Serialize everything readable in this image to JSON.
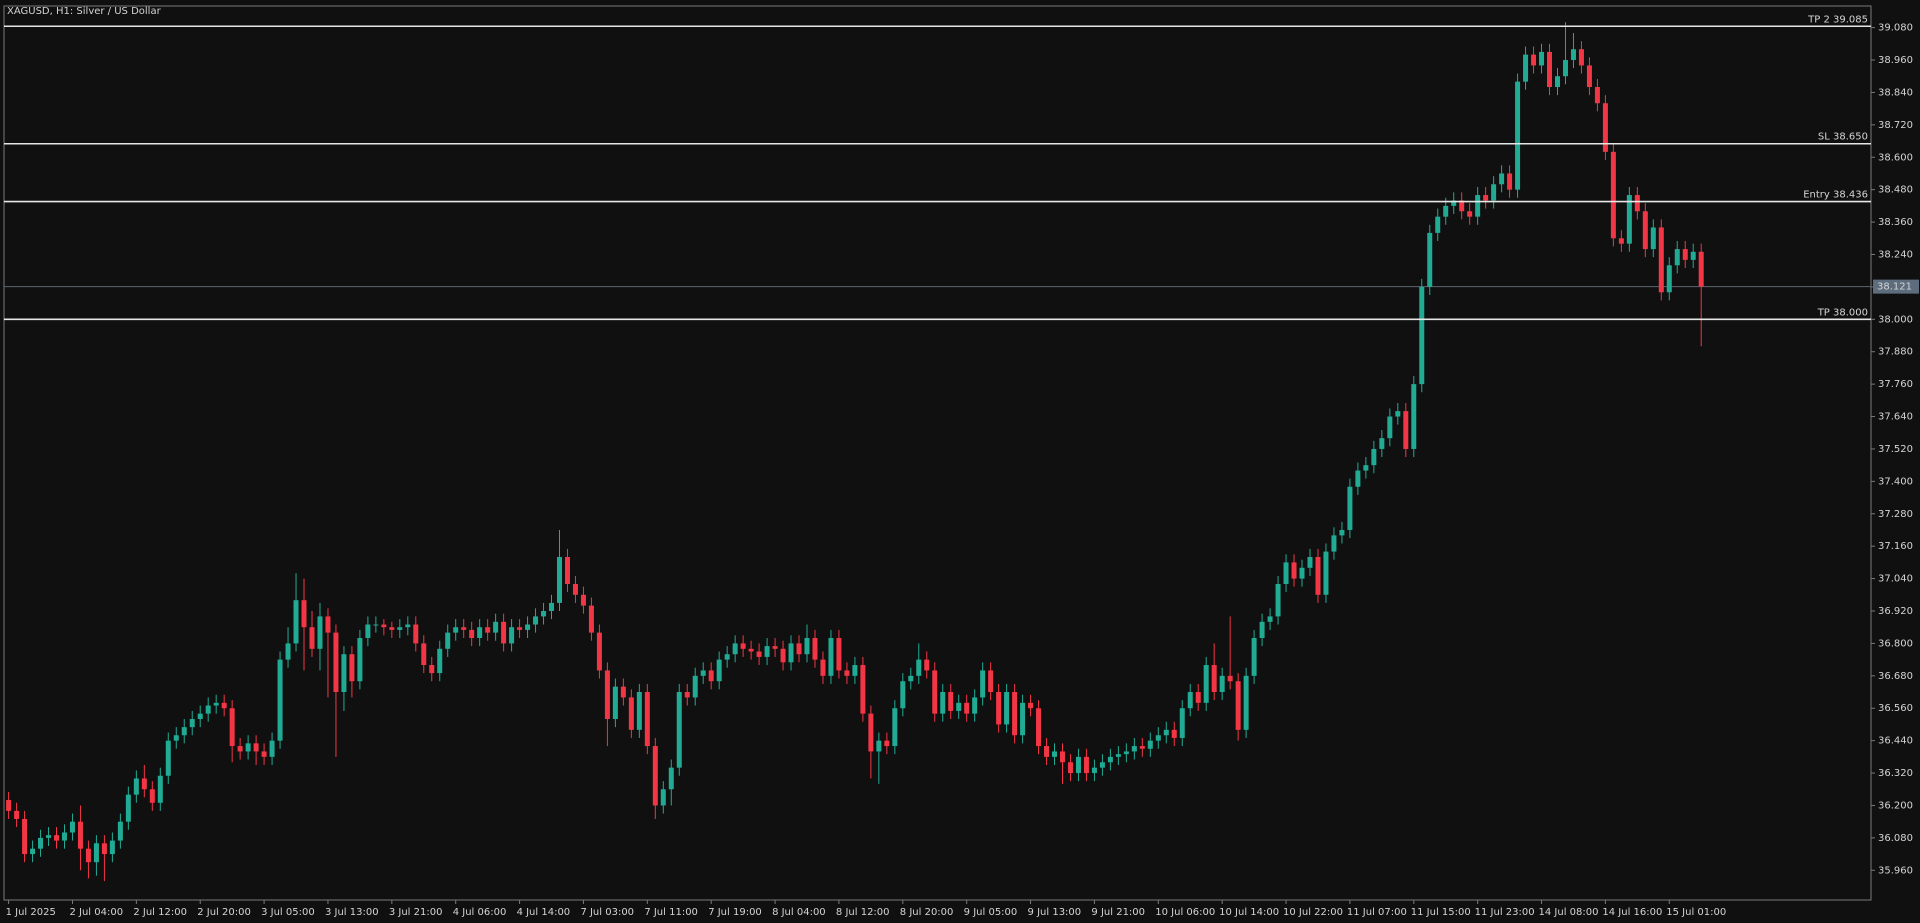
{
  "chart_data": {
    "type": "candlestick",
    "title": "XAGUSD, H1:  Silver / US Dollar",
    "up_color": "#22ab94",
    "down_color": "#f23645",
    "grid": false,
    "categories": [
      "1 Jul 2025",
      null,
      null,
      null,
      null,
      null,
      null,
      null,
      "2 Jul 04:00",
      null,
      null,
      null,
      null,
      null,
      null,
      null,
      "2 Jul 12:00",
      null,
      null,
      null,
      null,
      null,
      null,
      null,
      "2 Jul 20:00",
      null,
      null,
      null,
      null,
      null,
      null,
      null,
      "3 Jul 05:00",
      null,
      null,
      null,
      null,
      null,
      null,
      null,
      "3 Jul 13:00",
      null,
      null,
      null,
      null,
      null,
      null,
      null,
      "3 Jul 21:00",
      null,
      null,
      null,
      null,
      null,
      null,
      null,
      "4 Jul 06:00",
      null,
      null,
      null,
      null,
      null,
      null,
      null,
      "4 Jul 14:00",
      null,
      null,
      null,
      null,
      null,
      null,
      null,
      "7 Jul 03:00",
      null,
      null,
      null,
      null,
      null,
      null,
      null,
      "7 Jul 11:00",
      null,
      null,
      null,
      null,
      null,
      null,
      null,
      "7 Jul 19:00",
      null,
      null,
      null,
      null,
      null,
      null,
      null,
      "8 Jul 04:00",
      null,
      null,
      null,
      null,
      null,
      null,
      null,
      "8 Jul 12:00",
      null,
      null,
      null,
      null,
      null,
      null,
      null,
      "8 Jul 20:00",
      null,
      null,
      null,
      null,
      null,
      null,
      null,
      "9 Jul 05:00",
      null,
      null,
      null,
      null,
      null,
      null,
      null,
      "9 Jul 13:00",
      null,
      null,
      null,
      null,
      null,
      null,
      null,
      "9 Jul 21:00",
      null,
      null,
      null,
      null,
      null,
      null,
      null,
      "10 Jul 06:00",
      null,
      null,
      null,
      null,
      null,
      null,
      null,
      "10 Jul 14:00",
      null,
      null,
      null,
      null,
      null,
      null,
      null,
      "10 Jul 22:00",
      null,
      null,
      null,
      null,
      null,
      null,
      null,
      "11 Jul 07:00",
      null,
      null,
      null,
      null,
      null,
      null,
      null,
      "11 Jul 15:00",
      null,
      null,
      null,
      null,
      null,
      null,
      null,
      "11 Jul 23:00",
      null,
      null,
      null,
      null,
      null,
      null,
      null,
      "14 Jul 08:00",
      null,
      null,
      null,
      null,
      null,
      null,
      null,
      "14 Jul 16:00",
      null,
      null,
      null,
      null,
      null,
      null,
      null,
      "15 Jul 01:00",
      null,
      null,
      null,
      null
    ],
    "open": [
      36.22,
      36.18,
      36.15,
      36.02,
      36.04,
      36.08,
      36.09,
      36.07,
      36.1,
      36.14,
      36.04,
      35.99,
      36.06,
      36.02,
      36.07,
      36.14,
      36.24,
      36.3,
      36.26,
      36.21,
      36.31,
      36.44,
      36.46,
      36.49,
      36.52,
      36.54,
      36.57,
      36.58,
      36.56,
      36.42,
      36.4,
      36.43,
      36.4,
      36.38,
      36.44,
      36.74,
      36.8,
      36.96,
      36.86,
      36.78,
      36.9,
      36.84,
      36.62,
      36.76,
      36.66,
      36.82,
      36.87,
      36.87,
      36.86,
      36.85,
      36.86,
      36.87,
      36.8,
      36.72,
      36.69,
      36.78,
      36.84,
      36.86,
      36.85,
      36.82,
      36.86,
      36.84,
      36.88,
      36.8,
      36.86,
      36.85,
      36.87,
      36.9,
      36.92,
      36.95,
      37.12,
      37.02,
      36.98,
      36.94,
      36.84,
      36.7,
      36.52,
      36.64,
      36.6,
      36.48,
      36.62,
      36.42,
      36.2,
      36.26,
      36.34,
      36.62,
      36.6,
      36.68,
      36.7,
      36.66,
      36.74,
      36.76,
      36.8,
      36.78,
      36.77,
      36.75,
      36.79,
      36.78,
      36.73,
      36.8,
      36.76,
      36.82,
      36.74,
      36.68,
      36.82,
      36.7,
      36.68,
      36.72,
      36.54,
      36.4,
      36.44,
      36.42,
      36.56,
      36.66,
      36.68,
      36.74,
      36.7,
      36.54,
      36.62,
      36.55,
      36.58,
      36.54,
      36.6,
      36.7,
      36.62,
      36.5,
      36.62,
      36.46,
      36.58,
      36.56,
      36.42,
      36.38,
      36.4,
      36.36,
      36.32,
      36.38,
      36.32,
      36.34,
      36.36,
      36.38,
      36.39,
      36.4,
      36.42,
      36.41,
      36.44,
      36.46,
      36.48,
      36.45,
      36.56,
      36.62,
      36.58,
      36.72,
      36.62,
      36.68,
      36.66,
      36.48,
      36.68,
      36.82,
      36.88,
      36.9,
      37.02,
      37.1,
      37.04,
      37.08,
      37.12,
      36.98,
      37.14,
      37.2,
      37.22,
      37.38,
      37.44,
      37.46,
      37.52,
      37.56,
      37.64,
      37.66,
      37.52,
      37.76,
      38.12,
      38.32,
      38.38,
      38.42,
      38.44,
      38.4,
      38.38,
      38.46,
      38.44,
      38.5,
      38.54,
      38.48,
      38.88,
      38.98,
      38.94,
      38.99,
      38.86,
      38.9,
      38.96,
      39.0,
      38.94,
      38.86,
      38.8,
      38.62,
      38.3,
      38.28,
      38.46,
      38.4,
      38.26,
      38.34,
      38.1,
      38.2,
      38.26,
      38.22,
      38.25
    ],
    "high": [
      36.25,
      36.21,
      36.18,
      36.07,
      36.11,
      36.12,
      36.12,
      36.13,
      36.17,
      36.2,
      36.07,
      36.09,
      36.09,
      36.1,
      36.17,
      36.27,
      36.33,
      36.35,
      36.29,
      36.34,
      36.47,
      36.49,
      36.52,
      36.55,
      36.57,
      36.6,
      36.61,
      36.61,
      36.59,
      36.45,
      36.46,
      36.46,
      36.43,
      36.47,
      36.77,
      36.86,
      37.06,
      37.04,
      36.92,
      36.95,
      36.93,
      36.87,
      36.79,
      36.79,
      36.85,
      36.9,
      36.9,
      36.89,
      36.88,
      36.89,
      36.9,
      36.9,
      36.83,
      36.75,
      36.81,
      36.87,
      36.89,
      36.89,
      36.88,
      36.89,
      36.89,
      36.91,
      36.91,
      36.89,
      36.89,
      36.9,
      36.93,
      36.95,
      36.98,
      37.22,
      37.15,
      37.05,
      37.01,
      36.97,
      36.87,
      36.73,
      36.67,
      36.67,
      36.63,
      36.65,
      36.65,
      36.45,
      36.29,
      36.37,
      36.65,
      36.65,
      36.71,
      36.73,
      36.73,
      36.77,
      36.79,
      36.83,
      36.83,
      36.81,
      36.8,
      36.82,
      36.82,
      36.81,
      36.83,
      36.83,
      36.87,
      36.85,
      36.77,
      36.85,
      36.85,
      36.73,
      36.75,
      36.75,
      36.57,
      36.47,
      36.47,
      36.59,
      36.69,
      36.71,
      36.8,
      36.77,
      36.73,
      36.65,
      36.65,
      36.61,
      36.61,
      36.63,
      36.73,
      36.73,
      36.65,
      36.65,
      36.65,
      36.61,
      36.61,
      36.59,
      36.45,
      36.43,
      36.43,
      36.39,
      36.41,
      36.41,
      36.37,
      36.39,
      36.41,
      36.42,
      36.43,
      36.45,
      36.45,
      36.47,
      36.49,
      36.51,
      36.51,
      36.59,
      36.65,
      36.65,
      36.75,
      36.8,
      36.71,
      36.9,
      36.69,
      36.71,
      36.85,
      36.91,
      36.93,
      37.05,
      37.13,
      37.13,
      37.11,
      37.15,
      37.15,
      37.17,
      37.23,
      37.25,
      37.41,
      37.47,
      37.49,
      37.55,
      37.59,
      37.67,
      37.69,
      37.69,
      37.79,
      38.15,
      38.35,
      38.41,
      38.45,
      38.47,
      38.47,
      38.43,
      38.49,
      38.49,
      38.53,
      38.57,
      38.57,
      38.91,
      39.01,
      39.01,
      39.02,
      39.02,
      38.93,
      39.1,
      39.06,
      39.03,
      38.97,
      38.89,
      38.83,
      38.65,
      38.33,
      38.49,
      38.49,
      38.43,
      38.37,
      38.37,
      38.23,
      38.29,
      38.29,
      38.28,
      38.28
    ],
    "low": [
      36.15,
      36.12,
      35.99,
      35.99,
      36.01,
      36.05,
      36.04,
      36.04,
      36.07,
      35.96,
      35.93,
      35.94,
      35.92,
      35.99,
      36.04,
      36.11,
      36.21,
      36.23,
      36.18,
      36.18,
      36.28,
      36.41,
      36.43,
      36.46,
      36.49,
      36.51,
      36.54,
      36.53,
      36.36,
      36.37,
      36.37,
      36.35,
      36.35,
      36.35,
      36.41,
      36.71,
      36.77,
      36.7,
      36.75,
      36.7,
      36.6,
      36.38,
      36.55,
      36.6,
      36.63,
      36.79,
      36.84,
      36.83,
      36.82,
      36.82,
      36.83,
      36.77,
      36.69,
      36.66,
      36.66,
      36.75,
      36.81,
      36.82,
      36.79,
      36.79,
      36.81,
      36.81,
      36.77,
      36.77,
      36.82,
      36.82,
      36.84,
      36.87,
      36.89,
      36.92,
      36.99,
      36.95,
      36.91,
      36.81,
      36.67,
      36.42,
      36.49,
      36.57,
      36.45,
      36.45,
      36.39,
      36.15,
      36.17,
      36.2,
      36.31,
      36.57,
      36.57,
      36.65,
      36.63,
      36.63,
      36.71,
      36.73,
      36.75,
      36.74,
      36.72,
      36.72,
      36.75,
      36.7,
      36.7,
      36.73,
      36.73,
      36.71,
      36.65,
      36.65,
      36.67,
      36.65,
      36.65,
      36.51,
      36.3,
      36.28,
      36.39,
      36.39,
      36.53,
      36.63,
      36.65,
      36.67,
      36.51,
      36.51,
      36.52,
      36.52,
      36.51,
      36.51,
      36.57,
      36.59,
      36.47,
      36.47,
      36.43,
      36.43,
      36.53,
      36.39,
      36.35,
      36.35,
      36.28,
      36.29,
      36.29,
      36.29,
      36.29,
      36.31,
      36.33,
      36.35,
      36.36,
      36.37,
      36.38,
      36.38,
      36.41,
      36.43,
      36.42,
      36.42,
      36.53,
      36.55,
      36.55,
      36.59,
      36.59,
      36.63,
      36.44,
      36.45,
      36.65,
      36.79,
      36.85,
      36.87,
      36.99,
      37.01,
      37.01,
      37.05,
      36.95,
      36.95,
      37.11,
      37.17,
      37.19,
      37.35,
      37.41,
      37.43,
      37.49,
      37.53,
      37.61,
      37.49,
      37.49,
      37.73,
      38.09,
      38.29,
      38.35,
      38.39,
      38.37,
      38.35,
      38.35,
      38.41,
      38.41,
      38.47,
      38.45,
      38.45,
      38.85,
      38.91,
      38.91,
      38.83,
      38.83,
      38.87,
      38.93,
      38.91,
      38.83,
      38.77,
      38.59,
      38.27,
      38.25,
      38.25,
      38.37,
      38.23,
      38.23,
      38.07,
      38.07,
      38.17,
      38.19,
      38.19,
      37.9
    ],
    "close": [
      36.18,
      36.15,
      36.02,
      36.04,
      36.08,
      36.09,
      36.07,
      36.1,
      36.14,
      36.04,
      35.99,
      36.06,
      36.02,
      36.07,
      36.14,
      36.24,
      36.3,
      36.26,
      36.21,
      36.31,
      36.44,
      36.46,
      36.49,
      36.52,
      36.54,
      36.57,
      36.58,
      36.56,
      36.42,
      36.4,
      36.43,
      36.4,
      36.38,
      36.44,
      36.74,
      36.8,
      36.96,
      36.86,
      36.78,
      36.9,
      36.84,
      36.62,
      36.76,
      36.66,
      36.82,
      36.87,
      36.87,
      36.86,
      36.85,
      36.86,
      36.87,
      36.8,
      36.72,
      36.69,
      36.78,
      36.84,
      36.86,
      36.85,
      36.82,
      36.86,
      36.84,
      36.88,
      36.8,
      36.86,
      36.85,
      36.87,
      36.9,
      36.92,
      36.95,
      37.12,
      37.02,
      36.98,
      36.94,
      36.84,
      36.7,
      36.52,
      36.64,
      36.6,
      36.48,
      36.62,
      36.42,
      36.2,
      36.26,
      36.34,
      36.62,
      36.6,
      36.68,
      36.7,
      36.66,
      36.74,
      36.76,
      36.8,
      36.78,
      36.77,
      36.75,
      36.79,
      36.78,
      36.73,
      36.8,
      36.76,
      36.82,
      36.74,
      36.68,
      36.82,
      36.7,
      36.68,
      36.72,
      36.54,
      36.4,
      36.44,
      36.42,
      36.56,
      36.66,
      36.68,
      36.74,
      36.7,
      36.54,
      36.62,
      36.55,
      36.58,
      36.54,
      36.6,
      36.7,
      36.62,
      36.5,
      36.62,
      36.46,
      36.58,
      36.56,
      36.42,
      36.38,
      36.4,
      36.36,
      36.32,
      36.38,
      36.32,
      36.34,
      36.36,
      36.38,
      36.39,
      36.4,
      36.42,
      36.41,
      36.44,
      36.46,
      36.48,
      36.45,
      36.56,
      36.62,
      36.58,
      36.72,
      36.62,
      36.68,
      36.66,
      36.48,
      36.68,
      36.82,
      36.88,
      36.9,
      37.02,
      37.1,
      37.04,
      37.08,
      37.12,
      36.98,
      37.14,
      37.2,
      37.22,
      37.38,
      37.44,
      37.46,
      37.52,
      37.56,
      37.64,
      37.66,
      37.52,
      37.76,
      38.12,
      38.32,
      38.38,
      38.42,
      38.44,
      38.4,
      38.38,
      38.46,
      38.44,
      38.5,
      38.54,
      38.48,
      38.88,
      38.98,
      38.94,
      38.99,
      38.86,
      38.9,
      38.96,
      39.0,
      38.94,
      38.86,
      38.8,
      38.62,
      38.3,
      38.28,
      38.46,
      38.4,
      38.26,
      38.34,
      38.1,
      38.2,
      38.26,
      38.22,
      38.25,
      38.121
    ],
    "ylim": [
      35.85,
      39.16
    ],
    "yticks": [
      {
        "value": 39.08,
        "label": "39.080"
      },
      {
        "value": 38.96,
        "label": "38.960"
      },
      {
        "value": 38.84,
        "label": "38.840"
      },
      {
        "value": 38.72,
        "label": "38.720"
      },
      {
        "value": 38.6,
        "label": "38.600"
      },
      {
        "value": 38.48,
        "label": "38.480"
      },
      {
        "value": 38.36,
        "label": "38.360"
      },
      {
        "value": 38.24,
        "label": "38.240"
      },
      {
        "value": 38.12,
        "label": "38.120"
      },
      {
        "value": 38.0,
        "label": "38.000"
      },
      {
        "value": 37.88,
        "label": "37.880"
      },
      {
        "value": 37.76,
        "label": "37.760"
      },
      {
        "value": 37.64,
        "label": "37.640"
      },
      {
        "value": 37.52,
        "label": "37.520"
      },
      {
        "value": 37.4,
        "label": "37.400"
      },
      {
        "value": 37.28,
        "label": "37.280"
      },
      {
        "value": 37.16,
        "label": "37.160"
      },
      {
        "value": 37.04,
        "label": "37.040"
      },
      {
        "value": 36.92,
        "label": "36.920"
      },
      {
        "value": 36.8,
        "label": "36.800"
      },
      {
        "value": 36.68,
        "label": "36.680"
      },
      {
        "value": 36.56,
        "label": "36.560"
      },
      {
        "value": 36.44,
        "label": "36.440"
      },
      {
        "value": 36.32,
        "label": "36.320"
      },
      {
        "value": 36.2,
        "label": "36.200"
      },
      {
        "value": 36.08,
        "label": "36.080"
      },
      {
        "value": 35.96,
        "label": "35.960"
      }
    ],
    "levels": [
      {
        "label": "TP 2 39.085",
        "value": 39.085
      },
      {
        "label": "SL 38.650",
        "value": 38.65
      },
      {
        "label": "Entry 38.436",
        "value": 38.436
      },
      {
        "label": "TP 38.000",
        "value": 38.0
      }
    ],
    "last_price": 38.121
  }
}
